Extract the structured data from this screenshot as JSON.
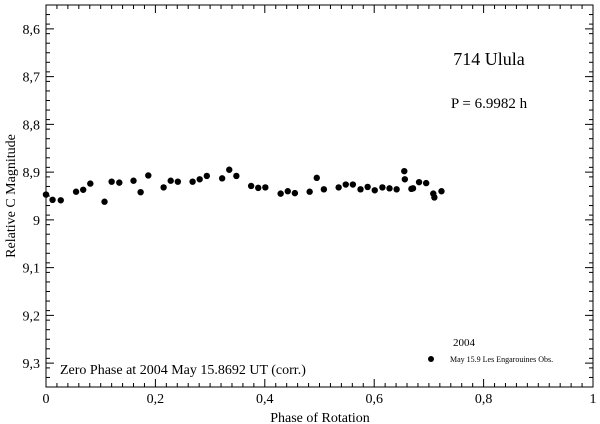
{
  "chart_data": {
    "type": "scatter",
    "title": "714 Ulula",
    "period_label": "P = 6.9982 h",
    "xlabel": "Phase of Rotation",
    "ylabel": "Relative C Magnitude",
    "xlim": [
      0,
      1
    ],
    "ylim": [
      8.55,
      9.35
    ],
    "y_inverted": true,
    "x_ticks": [
      "0",
      "0,2",
      "0,4",
      "0,6",
      "0,8",
      "1"
    ],
    "y_ticks": [
      "8,6",
      "8,7",
      "8,8",
      "8,9",
      "9",
      "9,1",
      "9,2",
      "9,3"
    ],
    "grid": false,
    "zero_phase_note": "Zero Phase at 2004 May 15.8692 UT (corr.)",
    "legend": {
      "position": "bottom-right",
      "year": "2004",
      "entries": [
        "May 15.9 Les Engarouines Obs."
      ]
    },
    "series": [
      {
        "name": "May 15.9 Les Engarouines Obs.",
        "marker": "filled-circle",
        "color": "#000000",
        "x": [
          0.0,
          0.012,
          0.027,
          0.055,
          0.068,
          0.081,
          0.107,
          0.12,
          0.134,
          0.16,
          0.173,
          0.187,
          0.215,
          0.228,
          0.241,
          0.268,
          0.281,
          0.294,
          0.322,
          0.335,
          0.348,
          0.375,
          0.388,
          0.401,
          0.429,
          0.442,
          0.455,
          0.482,
          0.495,
          0.508,
          0.535,
          0.548,
          0.561,
          0.575,
          0.588,
          0.601,
          0.615,
          0.628,
          0.641,
          0.655,
          0.656,
          0.668,
          0.671,
          0.682,
          0.695,
          0.708,
          0.71,
          0.723
        ],
        "y": [
          8.947,
          8.958,
          8.959,
          8.941,
          8.937,
          8.924,
          8.962,
          8.92,
          8.922,
          8.918,
          8.942,
          8.907,
          8.932,
          8.918,
          8.92,
          8.92,
          8.915,
          8.908,
          8.913,
          8.895,
          8.908,
          8.929,
          8.933,
          8.932,
          8.945,
          8.94,
          8.944,
          8.941,
          8.912,
          8.936,
          8.932,
          8.926,
          8.926,
          8.936,
          8.931,
          8.938,
          8.932,
          8.934,
          8.936,
          8.898,
          8.915,
          8.935,
          8.934,
          8.921,
          8.923,
          8.945,
          8.953,
          8.94
        ]
      }
    ]
  }
}
